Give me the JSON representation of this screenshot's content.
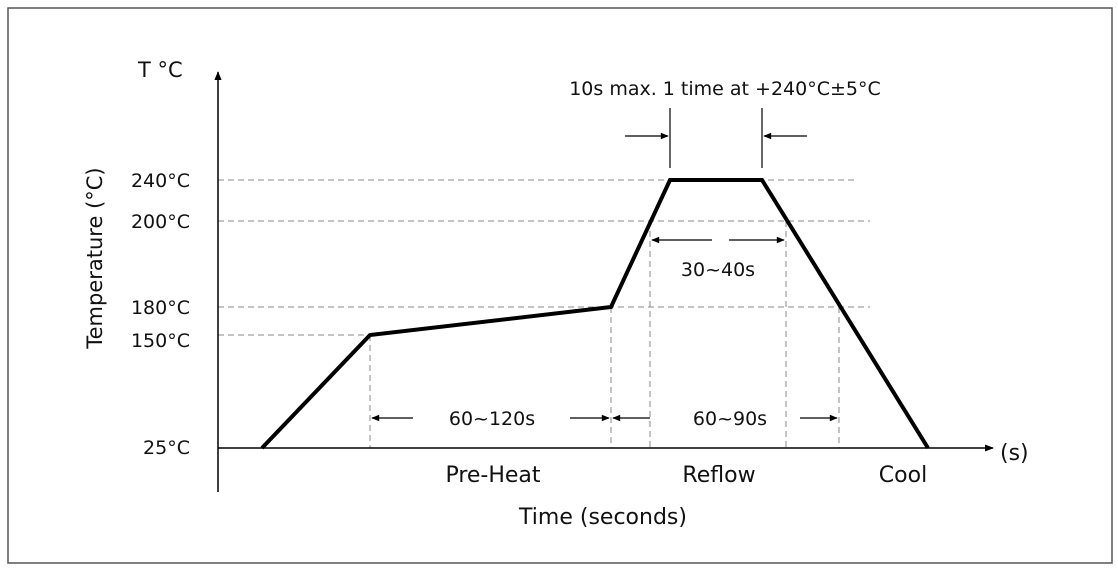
{
  "axis": {
    "y_title": "T °C",
    "y_label": "Temperature (°C)",
    "x_label": "Time (seconds)",
    "x_unit": "(s)"
  },
  "temperature_ticks": [
    {
      "id": "t240",
      "value": 240,
      "label": "240°C"
    },
    {
      "id": "t200",
      "value": 200,
      "label": "200°C"
    },
    {
      "id": "t180",
      "value": 180,
      "label": "180°C"
    },
    {
      "id": "t150",
      "value": 150,
      "label": "150°C"
    },
    {
      "id": "t25",
      "value": 25,
      "label": "25°C"
    }
  ],
  "annotations": {
    "peak_note": "10s max. 1 time at +240°C±5°C",
    "time_above_200": "30~40s",
    "preheat_duration": "60~120s",
    "time_above_180": "60~90s"
  },
  "phases": {
    "preheat": "Pre-Heat",
    "reflow": "Reflow",
    "cool": "Cool"
  },
  "colors": {
    "profile": "#000000",
    "guide": "#888888",
    "frame": "#555555"
  }
}
